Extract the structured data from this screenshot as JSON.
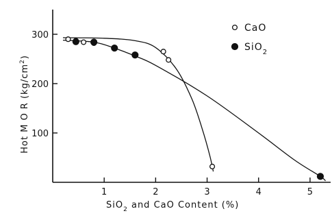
{
  "chart_data": {
    "type": "scatter",
    "title": "",
    "xlabel": "SiO2 and CaO Content (%)",
    "xlabel_parts": [
      "SiO",
      "2",
      " and CaO Content (%)"
    ],
    "ylabel": "Hot M O R (kg/cm2)",
    "ylabel_parts": [
      "Hot M O R (",
      "kg/cm",
      "2",
      ")"
    ],
    "xlim": [
      0,
      5.4
    ],
    "ylim": [
      0,
      350
    ],
    "x_ticks": [
      1,
      2,
      3,
      4,
      5
    ],
    "y_ticks": [
      100,
      200,
      300
    ],
    "legend_position": "top-right",
    "series": [
      {
        "name": "CaO",
        "name_parts": [
          "CaO",
          ""
        ],
        "marker": "open-circle",
        "x": [
          0.3,
          0.45,
          0.6,
          0.8,
          2.15,
          2.25,
          3.1
        ],
        "y": [
          290,
          287,
          284,
          282,
          265,
          248,
          32
        ],
        "fit_curve": {
          "x": [
            0.2,
            1.0,
            1.6,
            2.0,
            2.4,
            2.7,
            2.9,
            3.05,
            3.12
          ],
          "y": [
            293,
            292,
            287,
            273,
            230,
            170,
            110,
            55,
            22
          ]
        }
      },
      {
        "name": "SiO2",
        "name_parts": [
          "SiO",
          "2"
        ],
        "marker": "filled-circle",
        "x": [
          0.45,
          0.8,
          1.2,
          1.6,
          5.2
        ],
        "y": [
          285,
          284,
          272,
          258,
          12
        ],
        "fit_curve": {
          "x": [
            0.2,
            0.8,
            1.2,
            1.6,
            2.0,
            3.0,
            4.0,
            4.7,
            5.2,
            5.3
          ],
          "y": [
            288,
            284,
            272,
            256,
            237,
            175,
            100,
            45,
            12,
            3
          ]
        }
      }
    ]
  }
}
